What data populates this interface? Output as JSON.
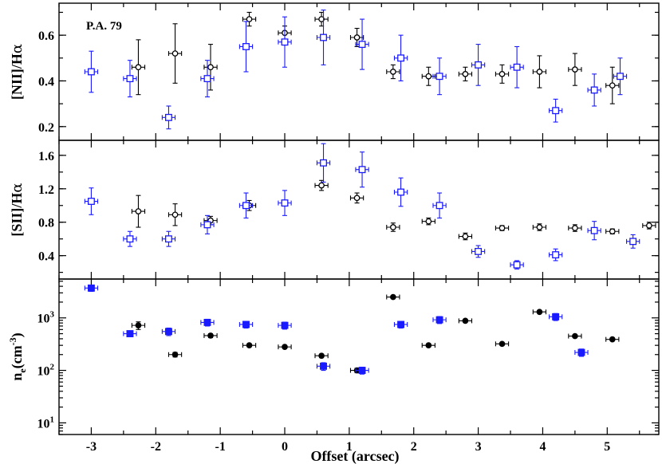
{
  "figure": {
    "xlabel": "Offset (arcsec)",
    "annotation": "P.A. 79",
    "colors": {
      "black": "#000000",
      "blue": "#1a1aff"
    }
  },
  "chart_data": [
    {
      "type": "scatter",
      "panel": "top",
      "ylabel_main": "[NII]/H",
      "ylabel_greek": "α",
      "xlim": [
        -3.5,
        5.8
      ],
      "ylim": [
        0.14,
        0.74
      ],
      "log_y": false,
      "x_ticks": [
        -3,
        -2,
        -1,
        0,
        1,
        2,
        3,
        4,
        5
      ],
      "y_ticks": [
        {
          "value": 0.2,
          "label": "0.2"
        },
        {
          "value": 0.4,
          "label": "0.4"
        },
        {
          "value": 0.6,
          "label": "0.6"
        }
      ],
      "series": [
        {
          "color": "#000000",
          "marker": "circle",
          "points": [
            {
              "x": -2.27,
              "y": 0.46,
              "xerr": 0.1,
              "yerr": 0.12
            },
            {
              "x": -1.7,
              "y": 0.52,
              "xerr": 0.1,
              "yerr": 0.13
            },
            {
              "x": -1.15,
              "y": 0.46,
              "xerr": 0.1,
              "yerr": 0.1
            },
            {
              "x": -0.55,
              "y": 0.67,
              "xerr": 0.1,
              "yerr": 0.03
            },
            {
              "x": 0.0,
              "y": 0.61,
              "xerr": 0.1,
              "yerr": 0.03
            },
            {
              "x": 0.57,
              "y": 0.67,
              "xerr": 0.1,
              "yerr": 0.03
            },
            {
              "x": 1.12,
              "y": 0.59,
              "xerr": 0.1,
              "yerr": 0.04
            },
            {
              "x": 1.68,
              "y": 0.44,
              "xerr": 0.1,
              "yerr": 0.03
            },
            {
              "x": 2.23,
              "y": 0.42,
              "xerr": 0.1,
              "yerr": 0.04
            },
            {
              "x": 2.8,
              "y": 0.43,
              "xerr": 0.1,
              "yerr": 0.03
            },
            {
              "x": 3.37,
              "y": 0.43,
              "xerr": 0.1,
              "yerr": 0.04
            },
            {
              "x": 3.95,
              "y": 0.44,
              "xerr": 0.1,
              "yerr": 0.07
            },
            {
              "x": 4.5,
              "y": 0.45,
              "xerr": 0.1,
              "yerr": 0.07
            },
            {
              "x": 5.08,
              "y": 0.38,
              "xerr": 0.1,
              "yerr": 0.08
            }
          ]
        },
        {
          "color": "#1a1aff",
          "marker": "square",
          "points": [
            {
              "x": -3.0,
              "y": 0.44,
              "xerr": 0.1,
              "yerr": 0.09
            },
            {
              "x": -2.4,
              "y": 0.41,
              "xerr": 0.1,
              "yerr": 0.08
            },
            {
              "x": -1.8,
              "y": 0.24,
              "xerr": 0.1,
              "yerr": 0.05
            },
            {
              "x": -1.2,
              "y": 0.41,
              "xerr": 0.1,
              "yerr": 0.08
            },
            {
              "x": -0.6,
              "y": 0.55,
              "xerr": 0.1,
              "yerr": 0.11
            },
            {
              "x": 0.0,
              "y": 0.57,
              "xerr": 0.1,
              "yerr": 0.11
            },
            {
              "x": 0.6,
              "y": 0.59,
              "xerr": 0.1,
              "yerr": 0.12
            },
            {
              "x": 1.2,
              "y": 0.56,
              "xerr": 0.1,
              "yerr": 0.11
            },
            {
              "x": 1.8,
              "y": 0.5,
              "xerr": 0.1,
              "yerr": 0.1
            },
            {
              "x": 2.4,
              "y": 0.42,
              "xerr": 0.1,
              "yerr": 0.08
            },
            {
              "x": 3.0,
              "y": 0.47,
              "xerr": 0.1,
              "yerr": 0.09
            },
            {
              "x": 3.6,
              "y": 0.46,
              "xerr": 0.1,
              "yerr": 0.09
            },
            {
              "x": 4.2,
              "y": 0.27,
              "xerr": 0.1,
              "yerr": 0.05
            },
            {
              "x": 4.8,
              "y": 0.36,
              "xerr": 0.1,
              "yerr": 0.07
            },
            {
              "x": 5.2,
              "y": 0.42,
              "xerr": 0.1,
              "yerr": 0.08
            }
          ]
        }
      ]
    },
    {
      "type": "scatter",
      "panel": "middle",
      "ylabel_main": "[SII]/H",
      "ylabel_greek": "α",
      "xlim": [
        -3.5,
        5.8
      ],
      "ylim": [
        0.12,
        1.78
      ],
      "log_y": false,
      "x_ticks": [
        -3,
        -2,
        -1,
        0,
        1,
        2,
        3,
        4,
        5
      ],
      "y_ticks": [
        {
          "value": 0.4,
          "label": "0.4"
        },
        {
          "value": 0.8,
          "label": "0.8"
        },
        {
          "value": 1.2,
          "label": "1.2"
        },
        {
          "value": 1.6,
          "label": "1.6"
        }
      ],
      "series": [
        {
          "color": "#000000",
          "marker": "circle",
          "points": [
            {
              "x": -2.27,
              "y": 0.93,
              "xerr": 0.1,
              "yerr": 0.19
            },
            {
              "x": -1.7,
              "y": 0.89,
              "xerr": 0.1,
              "yerr": 0.13
            },
            {
              "x": -1.15,
              "y": 0.82,
              "xerr": 0.1,
              "yerr": 0.05
            },
            {
              "x": -0.55,
              "y": 1.0,
              "xerr": 0.1,
              "yerr": 0.06
            },
            {
              "x": 0.57,
              "y": 1.24,
              "xerr": 0.1,
              "yerr": 0.06
            },
            {
              "x": 1.12,
              "y": 1.09,
              "xerr": 0.1,
              "yerr": 0.06
            },
            {
              "x": 1.68,
              "y": 0.74,
              "xerr": 0.1,
              "yerr": 0.05
            },
            {
              "x": 2.23,
              "y": 0.81,
              "xerr": 0.1,
              "yerr": 0.04
            },
            {
              "x": 2.8,
              "y": 0.63,
              "xerr": 0.1,
              "yerr": 0.04
            },
            {
              "x": 3.37,
              "y": 0.73,
              "xerr": 0.1,
              "yerr": 0.03
            },
            {
              "x": 3.95,
              "y": 0.74,
              "xerr": 0.1,
              "yerr": 0.04
            },
            {
              "x": 4.5,
              "y": 0.73,
              "xerr": 0.1,
              "yerr": 0.04
            },
            {
              "x": 5.08,
              "y": 0.69,
              "xerr": 0.1,
              "yerr": 0.03
            },
            {
              "x": 5.65,
              "y": 0.76,
              "xerr": 0.1,
              "yerr": 0.04
            }
          ]
        },
        {
          "color": "#1a1aff",
          "marker": "square",
          "points": [
            {
              "x": -3.0,
              "y": 1.05,
              "xerr": 0.1,
              "yerr": 0.16
            },
            {
              "x": -2.4,
              "y": 0.6,
              "xerr": 0.1,
              "yerr": 0.09
            },
            {
              "x": -1.8,
              "y": 0.6,
              "xerr": 0.1,
              "yerr": 0.09
            },
            {
              "x": -1.2,
              "y": 0.77,
              "xerr": 0.1,
              "yerr": 0.11
            },
            {
              "x": -0.6,
              "y": 1.0,
              "xerr": 0.1,
              "yerr": 0.15
            },
            {
              "x": 0.0,
              "y": 1.03,
              "xerr": 0.1,
              "yerr": 0.15
            },
            {
              "x": 0.6,
              "y": 1.51,
              "xerr": 0.1,
              "yerr": 0.23
            },
            {
              "x": 1.2,
              "y": 1.43,
              "xerr": 0.1,
              "yerr": 0.21
            },
            {
              "x": 1.8,
              "y": 1.16,
              "xerr": 0.1,
              "yerr": 0.17
            },
            {
              "x": 2.4,
              "y": 1.0,
              "xerr": 0.1,
              "yerr": 0.15
            },
            {
              "x": 3.0,
              "y": 0.45,
              "xerr": 0.1,
              "yerr": 0.07
            },
            {
              "x": 3.6,
              "y": 0.29,
              "xerr": 0.1,
              "yerr": 0.05
            },
            {
              "x": 4.2,
              "y": 0.41,
              "xerr": 0.1,
              "yerr": 0.07
            },
            {
              "x": 4.8,
              "y": 0.7,
              "xerr": 0.1,
              "yerr": 0.11
            },
            {
              "x": 5.4,
              "y": 0.57,
              "xerr": 0.1,
              "yerr": 0.08
            }
          ]
        }
      ]
    },
    {
      "type": "scatter",
      "panel": "bottom",
      "ylabel_main": "n",
      "ylabel_sub": "e",
      "ylabel_tail": "(cm",
      "ylabel_sup": "-3",
      "ylabel_end": ")",
      "xlim": [
        -3.5,
        5.8
      ],
      "ylim": [
        6,
        5500
      ],
      "log_y": true,
      "x_ticks": [
        -3,
        -2,
        -1,
        0,
        1,
        2,
        3,
        4,
        5
      ],
      "y_ticks": [
        {
          "value": 10,
          "base": "10",
          "exp": "1"
        },
        {
          "value": 100,
          "base": "10",
          "exp": "2"
        },
        {
          "value": 1000,
          "base": "10",
          "exp": "3"
        }
      ],
      "series": [
        {
          "color": "#000000",
          "marker": "circle",
          "points": [
            {
              "x": -2.27,
              "y": 720,
              "xerr": 0.1,
              "yerr": 120
            },
            {
              "x": -1.7,
              "y": 200,
              "xerr": 0.1,
              "yerr": 20
            },
            {
              "x": -1.15,
              "y": 460,
              "xerr": 0.1,
              "yerr": 40
            },
            {
              "x": -0.55,
              "y": 300,
              "xerr": 0.1,
              "yerr": 20
            },
            {
              "x": 0.0,
              "y": 280,
              "xerr": 0.1,
              "yerr": 15
            },
            {
              "x": 0.57,
              "y": 190,
              "xerr": 0.1,
              "yerr": 15
            },
            {
              "x": 1.12,
              "y": 100,
              "xerr": 0.1,
              "yerr": 10
            },
            {
              "x": 1.68,
              "y": 2500,
              "xerr": 0.1,
              "yerr": 150
            },
            {
              "x": 2.23,
              "y": 300,
              "xerr": 0.1,
              "yerr": 20
            },
            {
              "x": 2.8,
              "y": 880,
              "xerr": 0.1,
              "yerr": 50
            },
            {
              "x": 3.37,
              "y": 320,
              "xerr": 0.1,
              "yerr": 20
            },
            {
              "x": 3.95,
              "y": 1300,
              "xerr": 0.1,
              "yerr": 80
            },
            {
              "x": 4.5,
              "y": 450,
              "xerr": 0.1,
              "yerr": 30
            },
            {
              "x": 5.08,
              "y": 390,
              "xerr": 0.1,
              "yerr": 25
            }
          ]
        },
        {
          "color": "#1a1aff",
          "marker": "square",
          "points": [
            {
              "x": -3.0,
              "y": 3700,
              "xerr": 0.1,
              "yerr": 500
            },
            {
              "x": -2.4,
              "y": 500,
              "xerr": 0.1,
              "yerr": 60
            },
            {
              "x": -1.8,
              "y": 550,
              "xerr": 0.1,
              "yerr": 90
            },
            {
              "x": -1.2,
              "y": 820,
              "xerr": 0.1,
              "yerr": 120
            },
            {
              "x": -0.6,
              "y": 750,
              "xerr": 0.1,
              "yerr": 110
            },
            {
              "x": 0.0,
              "y": 720,
              "xerr": 0.1,
              "yerr": 110
            },
            {
              "x": 0.6,
              "y": 120,
              "xerr": 0.1,
              "yerr": 20
            },
            {
              "x": 1.2,
              "y": 100,
              "xerr": 0.1,
              "yerr": 15
            },
            {
              "x": 1.8,
              "y": 750,
              "xerr": 0.1,
              "yerr": 110
            },
            {
              "x": 2.4,
              "y": 920,
              "xerr": 0.1,
              "yerr": 140
            },
            {
              "x": 4.2,
              "y": 1050,
              "xerr": 0.1,
              "yerr": 160
            },
            {
              "x": 4.6,
              "y": 220,
              "xerr": 0.1,
              "yerr": 35
            }
          ]
        }
      ]
    }
  ]
}
